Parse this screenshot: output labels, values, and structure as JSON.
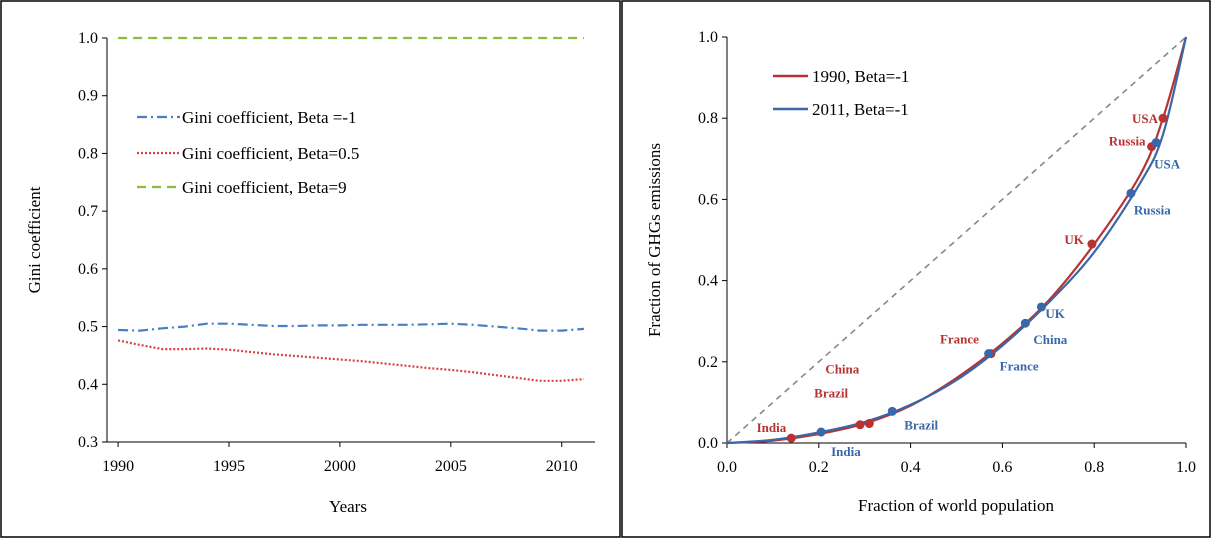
{
  "chart_data": [
    {
      "type": "line",
      "xlabel": "Years",
      "ylabel": "Gini coefficient",
      "xlim": [
        1989.5,
        2011.5
      ],
      "ylim": [
        0.3,
        1.0
      ],
      "xticks": [
        "1990",
        "1995",
        "2000",
        "2005",
        "2010"
      ],
      "yticks": [
        "0.3",
        "0.4",
        "0.5",
        "0.6",
        "0.7",
        "0.8",
        "0.9",
        "1.0"
      ],
      "grid": false,
      "legend_position": "left-center",
      "series": [
        {
          "name": "Gini coefficient, Beta =-1",
          "color": "#4a7ec2",
          "dash": "dash-dot",
          "x": [
            1990,
            1991,
            1992,
            1993,
            1994,
            1995,
            1996,
            1997,
            1998,
            1999,
            2000,
            2001,
            2002,
            2003,
            2004,
            2005,
            2006,
            2007,
            2008,
            2009,
            2010,
            2011
          ],
          "y": [
            0.494,
            0.493,
            0.497,
            0.5,
            0.505,
            0.505,
            0.503,
            0.501,
            0.501,
            0.502,
            0.502,
            0.503,
            0.503,
            0.503,
            0.504,
            0.505,
            0.503,
            0.5,
            0.497,
            0.493,
            0.493,
            0.496
          ]
        },
        {
          "name": "Gini coefficient, Beta=0.5",
          "color": "#d94040",
          "dash": "dotted",
          "x": [
            1990,
            1991,
            1992,
            1993,
            1994,
            1995,
            1996,
            1997,
            1998,
            1999,
            2000,
            2001,
            2002,
            2003,
            2004,
            2005,
            2006,
            2007,
            2008,
            2009,
            2010,
            2011
          ],
          "y": [
            0.476,
            0.468,
            0.461,
            0.461,
            0.462,
            0.46,
            0.456,
            0.452,
            0.449,
            0.446,
            0.443,
            0.44,
            0.436,
            0.432,
            0.428,
            0.425,
            0.421,
            0.416,
            0.411,
            0.406,
            0.406,
            0.409
          ]
        },
        {
          "name": "Gini coefficient, Beta=9",
          "color": "#8dbb3f",
          "dash": "dashed",
          "x": [
            1990,
            2011
          ],
          "y": [
            1.0,
            1.0
          ]
        }
      ]
    },
    {
      "type": "line",
      "xlabel": "Fraction  of world population",
      "ylabel": "Fraction of GHGs emissions",
      "xlim": [
        0.0,
        1.0
      ],
      "ylim": [
        0.0,
        1.0
      ],
      "xticks": [
        "0.0",
        "0.2",
        "0.4",
        "0.6",
        "0.8",
        "1.0"
      ],
      "yticks": [
        "0.0",
        "0.2",
        "0.4",
        "0.6",
        "0.8",
        "1.0"
      ],
      "grid": false,
      "legend_position": "top-left",
      "diagonal": {
        "color": "#888888",
        "from": [
          0,
          0
        ],
        "to": [
          1,
          1
        ]
      },
      "series": [
        {
          "name": "1990, Beta=-1",
          "color": "#b83232",
          "x": [
            0.0,
            0.1,
            0.2,
            0.3,
            0.4,
            0.5,
            0.6,
            0.7,
            0.8,
            0.9,
            0.95,
            1.0
          ],
          "y": [
            0.0,
            0.006,
            0.022,
            0.048,
            0.092,
            0.16,
            0.245,
            0.35,
            0.49,
            0.66,
            0.8,
            1.0
          ]
        },
        {
          "name": "2011, Beta=-1",
          "color": "#3a67a8",
          "x": [
            0.0,
            0.1,
            0.2,
            0.3,
            0.4,
            0.5,
            0.6,
            0.7,
            0.8,
            0.9,
            0.95,
            1.0
          ],
          "y": [
            0.0,
            0.008,
            0.026,
            0.052,
            0.094,
            0.155,
            0.24,
            0.345,
            0.47,
            0.64,
            0.76,
            1.0
          ]
        }
      ],
      "points": [
        {
          "label": "India",
          "series": "1990",
          "x": 0.14,
          "y": 0.012,
          "color": "#b83232"
        },
        {
          "label": "Brazil",
          "series": "1990",
          "x": 0.29,
          "y": 0.045,
          "color": "#b83232"
        },
        {
          "label": "China",
          "series": "1990",
          "x": 0.31,
          "y": 0.048,
          "color": "#b83232"
        },
        {
          "label": "France",
          "series": "1990",
          "x": 0.575,
          "y": 0.22,
          "color": "#b83232"
        },
        {
          "label": "UK",
          "series": "1990",
          "x": 0.795,
          "y": 0.49,
          "color": "#b83232"
        },
        {
          "label": "Russia",
          "series": "1990",
          "x": 0.925,
          "y": 0.73,
          "color": "#b83232"
        },
        {
          "label": "USA",
          "series": "1990",
          "x": 0.95,
          "y": 0.8,
          "color": "#b83232"
        },
        {
          "label": "India",
          "series": "2011",
          "x": 0.205,
          "y": 0.027,
          "color": "#3a67a8"
        },
        {
          "label": "Brazil",
          "series": "2011",
          "x": 0.36,
          "y": 0.078,
          "color": "#3a67a8"
        },
        {
          "label": "France",
          "series": "2011",
          "x": 0.57,
          "y": 0.22,
          "color": "#3a67a8"
        },
        {
          "label": "China",
          "series": "2011",
          "x": 0.65,
          "y": 0.295,
          "color": "#3a67a8"
        },
        {
          "label": "UK",
          "series": "2011",
          "x": 0.685,
          "y": 0.335,
          "color": "#3a67a8"
        },
        {
          "label": "Russia",
          "series": "2011",
          "x": 0.88,
          "y": 0.615,
          "color": "#3a67a8"
        },
        {
          "label": "USA",
          "series": "2011",
          "x": 0.935,
          "y": 0.74,
          "color": "#3a67a8"
        }
      ]
    }
  ]
}
